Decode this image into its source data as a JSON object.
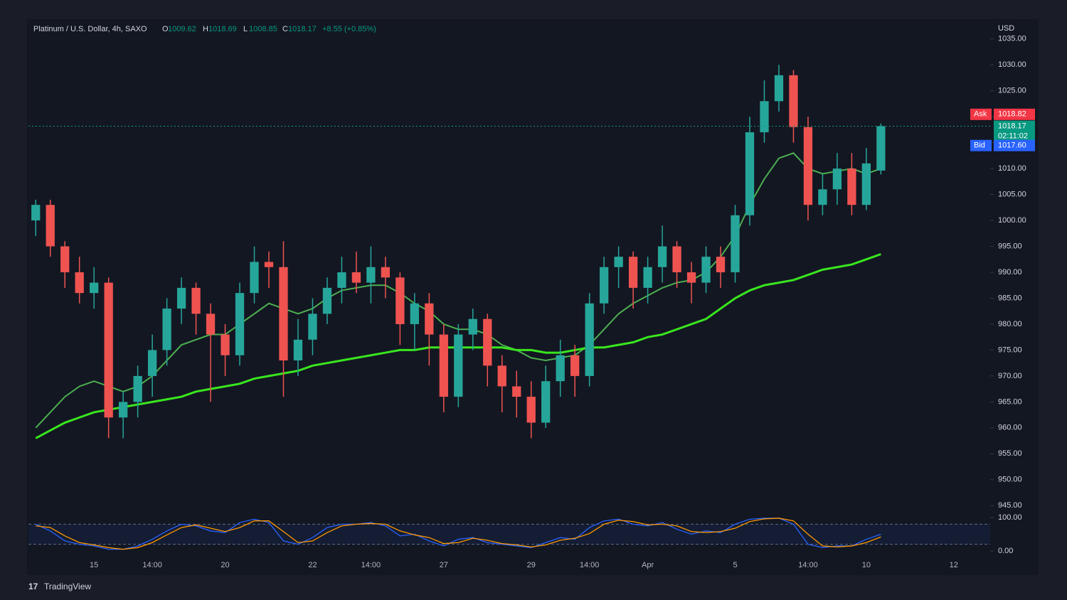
{
  "chart_data": {
    "type": "candlestick",
    "title": "Platinum / U.S. Dollar, 4h, SAXO",
    "ohlc_keys": [
      "O",
      "H",
      "L",
      "C"
    ],
    "change": "+8.55 (+0.85%)",
    "currency": "USD",
    "up_color": "#26a69a",
    "down_color": "#ef5350",
    "categories": [
      null,
      null,
      null,
      null,
      "15",
      null,
      null,
      null,
      "14:00",
      null,
      null,
      null,
      null,
      "20",
      null,
      null,
      null,
      null,
      null,
      "22",
      null,
      null,
      null,
      "14:00",
      null,
      null,
      null,
      null,
      "27",
      null,
      null,
      null,
      null,
      null,
      "29",
      null,
      null,
      null,
      "14:00",
      null,
      null,
      null,
      "Apr",
      null,
      null,
      null,
      null,
      null,
      "5",
      null,
      null,
      null,
      null,
      "14:00",
      null,
      null,
      null,
      "10",
      null,
      null,
      null,
      null,
      null,
      "12",
      null,
      null
    ],
    "open": [
      1000,
      1003,
      995,
      990,
      986,
      988,
      962,
      965,
      970,
      975,
      983,
      987,
      982,
      978,
      974,
      986,
      992,
      991,
      973,
      977,
      982,
      987,
      990,
      988,
      991,
      989,
      980,
      984,
      978,
      966,
      978,
      981,
      972,
      968,
      966,
      961,
      969,
      974,
      970,
      984,
      991,
      993,
      987,
      991,
      995,
      990,
      988,
      993,
      990,
      1001,
      1017,
      1023,
      1028,
      1018,
      1003,
      1006,
      1010,
      1003,
      1009.62,
      null,
      null,
      null,
      null,
      null,
      null,
      null
    ],
    "high": [
      1004,
      1004,
      996,
      993,
      991,
      989,
      967,
      972,
      978,
      985,
      989,
      988,
      984,
      980,
      988,
      995,
      994,
      996,
      981,
      985,
      989,
      993,
      994,
      995,
      993,
      990,
      986,
      986,
      980,
      980,
      983,
      982,
      974,
      971,
      969,
      972,
      977,
      976,
      986,
      993,
      995,
      994,
      993,
      999,
      996,
      992,
      995,
      995,
      1003,
      1020,
      1027,
      1030,
      1029,
      1020,
      1009,
      1013,
      1013,
      1014,
      1018.69,
      null,
      null,
      null,
      null,
      null,
      null,
      null
    ],
    "low": [
      997,
      993,
      987,
      984,
      983,
      958,
      958,
      962,
      966,
      972,
      980,
      978,
      965,
      970,
      972,
      984,
      987,
      966,
      970,
      974,
      980,
      984,
      986,
      984,
      985,
      976,
      975,
      972,
      963,
      964,
      975,
      968,
      963,
      962,
      958,
      960,
      966,
      966,
      968,
      982,
      987,
      983,
      984,
      988,
      987,
      984,
      986,
      987,
      988,
      999,
      1015,
      1021,
      1015,
      1000,
      1001,
      1003,
      1001,
      1002,
      1008.85,
      null,
      null,
      null,
      null,
      null,
      null,
      null
    ],
    "close": [
      1003,
      995,
      990,
      986,
      988,
      962,
      965,
      970,
      975,
      983,
      987,
      982,
      978,
      974,
      986,
      992,
      991,
      973,
      977,
      982,
      987,
      990,
      988,
      991,
      989,
      980,
      984,
      978,
      966,
      978,
      981,
      972,
      968,
      966,
      961,
      969,
      974,
      970,
      984,
      991,
      993,
      987,
      991,
      995,
      990,
      988,
      993,
      990,
      1001,
      1017,
      1023,
      1028,
      1018,
      1003,
      1006,
      1010,
      1003,
      1011,
      1018.17,
      null,
      null,
      null,
      null,
      null,
      null,
      null
    ],
    "overlays": [
      {
        "color": "#4caf50",
        "values": [
          960,
          963,
          966,
          968,
          969,
          968,
          967,
          968,
          970,
          973,
          976,
          977,
          978,
          978,
          980,
          982,
          984,
          983,
          982,
          983,
          985,
          986.5,
          987,
          987.5,
          987.5,
          986,
          984,
          982.5,
          980,
          979,
          979,
          978,
          976,
          975,
          973.5,
          973,
          973.5,
          974,
          976,
          979,
          982,
          984,
          985.5,
          987,
          988,
          988.5,
          990,
          993,
          997,
          1003,
          1008,
          1012,
          1013,
          1010,
          1009,
          1009.5,
          1010,
          1009,
          1010,
          null,
          null,
          null,
          null,
          null,
          null,
          null
        ]
      },
      {
        "color": "#39e61e",
        "values": [
          958,
          959.5,
          961,
          962,
          963,
          963.5,
          964,
          964.5,
          965,
          965.5,
          966,
          967,
          967.5,
          968,
          968.5,
          969.5,
          970,
          970.5,
          971,
          972,
          972.5,
          973,
          973.5,
          974,
          974.5,
          975,
          975,
          975.5,
          975.5,
          975.5,
          975.5,
          975.5,
          975.5,
          975,
          975,
          974.5,
          974.5,
          975,
          975.5,
          975.5,
          976,
          976.5,
          977.5,
          978,
          979,
          980,
          981,
          983,
          985,
          986.5,
          987.5,
          988,
          988.5,
          989.5,
          990.5,
          991,
          991.5,
          992.5,
          993.5,
          null,
          null,
          null,
          null,
          null,
          null,
          null
        ]
      }
    ],
    "ylim": [
      943.8,
      1038.4
    ],
    "yticks": [
      {
        "value": 945,
        "label": "945.00"
      },
      {
        "value": 950,
        "label": "950.00"
      },
      {
        "value": 955,
        "label": "955.00"
      },
      {
        "value": 960,
        "label": "960.00"
      },
      {
        "value": 965,
        "label": "965.00"
      },
      {
        "value": 970,
        "label": "970.00"
      },
      {
        "value": 975,
        "label": "975.00"
      },
      {
        "value": 980,
        "label": "980.00"
      },
      {
        "value": 985,
        "label": "985.00"
      },
      {
        "value": 990,
        "label": "990.00"
      },
      {
        "value": 995,
        "label": "995.00"
      },
      {
        "value": 1000,
        "label": "1000.00"
      },
      {
        "value": 1005,
        "label": "1005.00"
      },
      {
        "value": 1010,
        "label": "1010.00"
      },
      {
        "value": 1015,
        "label": "1015.00"
      },
      {
        "value": 1020,
        "label": "1020.00"
      },
      {
        "value": 1025,
        "label": "1025.00"
      },
      {
        "value": 1030,
        "label": "1030.00"
      },
      {
        "value": 1035,
        "label": "1035.00"
      }
    ],
    "price_labels": [
      {
        "tag": "Ask",
        "price": 1018.82,
        "color": "#f23645"
      },
      {
        "tag": "Bid",
        "price": {
          "value": 1017.6,
          "label": "1017.60"
        },
        "color": "#2962ff"
      }
    ],
    "countdown": "02:11:02",
    "last_color": "#089981",
    "oscillator": {
      "ylim": [
        0,
        100
      ],
      "yticks": [
        {
          "value": 100,
          "label": "100.00"
        },
        {
          "value": 0,
          "label": "0.00"
        }
      ],
      "bands": [
        20,
        80
      ],
      "series": [
        {
          "color": "#2962ff",
          "values": [
            80,
            60,
            30,
            20,
            15,
            5,
            5,
            15,
            35,
            60,
            80,
            75,
            60,
            55,
            85,
            95,
            85,
            30,
            20,
            40,
            70,
            80,
            80,
            85,
            75,
            45,
            50,
            30,
            15,
            35,
            40,
            25,
            20,
            15,
            10,
            25,
            40,
            35,
            70,
            90,
            95,
            80,
            75,
            85,
            65,
            50,
            60,
            55,
            80,
            95,
            98,
            98,
            80,
            20,
            10,
            15,
            15,
            35,
            50,
            null,
            null,
            null,
            null,
            null,
            null,
            null
          ]
        },
        {
          "color": "#ff9800",
          "values": [
            75,
            70,
            45,
            25,
            18,
            10,
            5,
            10,
            25,
            48,
            70,
            78,
            68,
            58,
            70,
            90,
            90,
            58,
            25,
            30,
            55,
            75,
            80,
            82,
            80,
            60,
            48,
            40,
            22,
            25,
            38,
            32,
            22,
            18,
            12,
            18,
            32,
            38,
            52,
            80,
            92,
            88,
            78,
            80,
            75,
            58,
            55,
            58,
            68,
            88,
            96,
            98,
            90,
            50,
            15,
            12,
            15,
            25,
            42,
            null,
            null,
            null,
            null,
            null,
            null,
            null
          ]
        }
      ]
    },
    "brand": "TradingView"
  }
}
